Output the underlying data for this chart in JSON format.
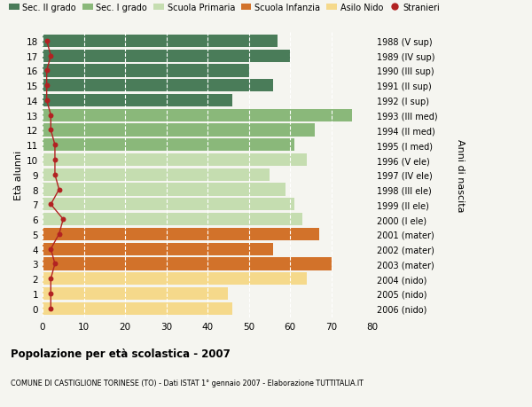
{
  "ages": [
    18,
    17,
    16,
    15,
    14,
    13,
    12,
    11,
    10,
    9,
    8,
    7,
    6,
    5,
    4,
    3,
    2,
    1,
    0
  ],
  "years": [
    "1988 (V sup)",
    "1989 (IV sup)",
    "1990 (III sup)",
    "1991 (II sup)",
    "1992 (I sup)",
    "1993 (III med)",
    "1994 (II med)",
    "1995 (I med)",
    "1996 (V ele)",
    "1997 (IV ele)",
    "1998 (III ele)",
    "1999 (II ele)",
    "2000 (I ele)",
    "2001 (mater)",
    "2002 (mater)",
    "2003 (mater)",
    "2004 (nido)",
    "2005 (nido)",
    "2006 (nido)"
  ],
  "values": [
    57,
    60,
    50,
    56,
    46,
    75,
    66,
    61,
    64,
    55,
    59,
    61,
    63,
    67,
    56,
    70,
    64,
    45,
    46
  ],
  "stranieri": [
    1,
    2,
    1,
    1,
    1,
    2,
    2,
    3,
    3,
    3,
    4,
    2,
    5,
    4,
    2,
    3,
    2,
    2,
    2
  ],
  "bar_colors": [
    "#4a7c59",
    "#4a7c59",
    "#4a7c59",
    "#4a7c59",
    "#4a7c59",
    "#8ab87a",
    "#8ab87a",
    "#8ab87a",
    "#c5ddb0",
    "#c5ddb0",
    "#c5ddb0",
    "#c5ddb0",
    "#c5ddb0",
    "#d2722a",
    "#d2722a",
    "#d2722a",
    "#f5d98b",
    "#f5d98b",
    "#f5d98b"
  ],
  "legend_colors": [
    "#4a7c59",
    "#8ab87a",
    "#c5ddb0",
    "#d2722a",
    "#f5d98b",
    "#b22222"
  ],
  "legend_labels": [
    "Sec. II grado",
    "Sec. I grado",
    "Scuola Primaria",
    "Scuola Infanzia",
    "Asilo Nido",
    "Stranieri"
  ],
  "ylabel_left": "Età alunni",
  "ylabel_right": "Anni di nascita",
  "xlim": [
    0,
    80
  ],
  "xticks": [
    0,
    10,
    20,
    30,
    40,
    50,
    60,
    70,
    80
  ],
  "title": "Popolazione per età scolastica - 2007",
  "subtitle": "COMUNE DI CASTIGLIONE TORINESE (TO) - Dati ISTAT 1° gennaio 2007 - Elaborazione TUTTITALIA.IT",
  "bg_color": "#f5f5f0",
  "bar_height": 0.85
}
